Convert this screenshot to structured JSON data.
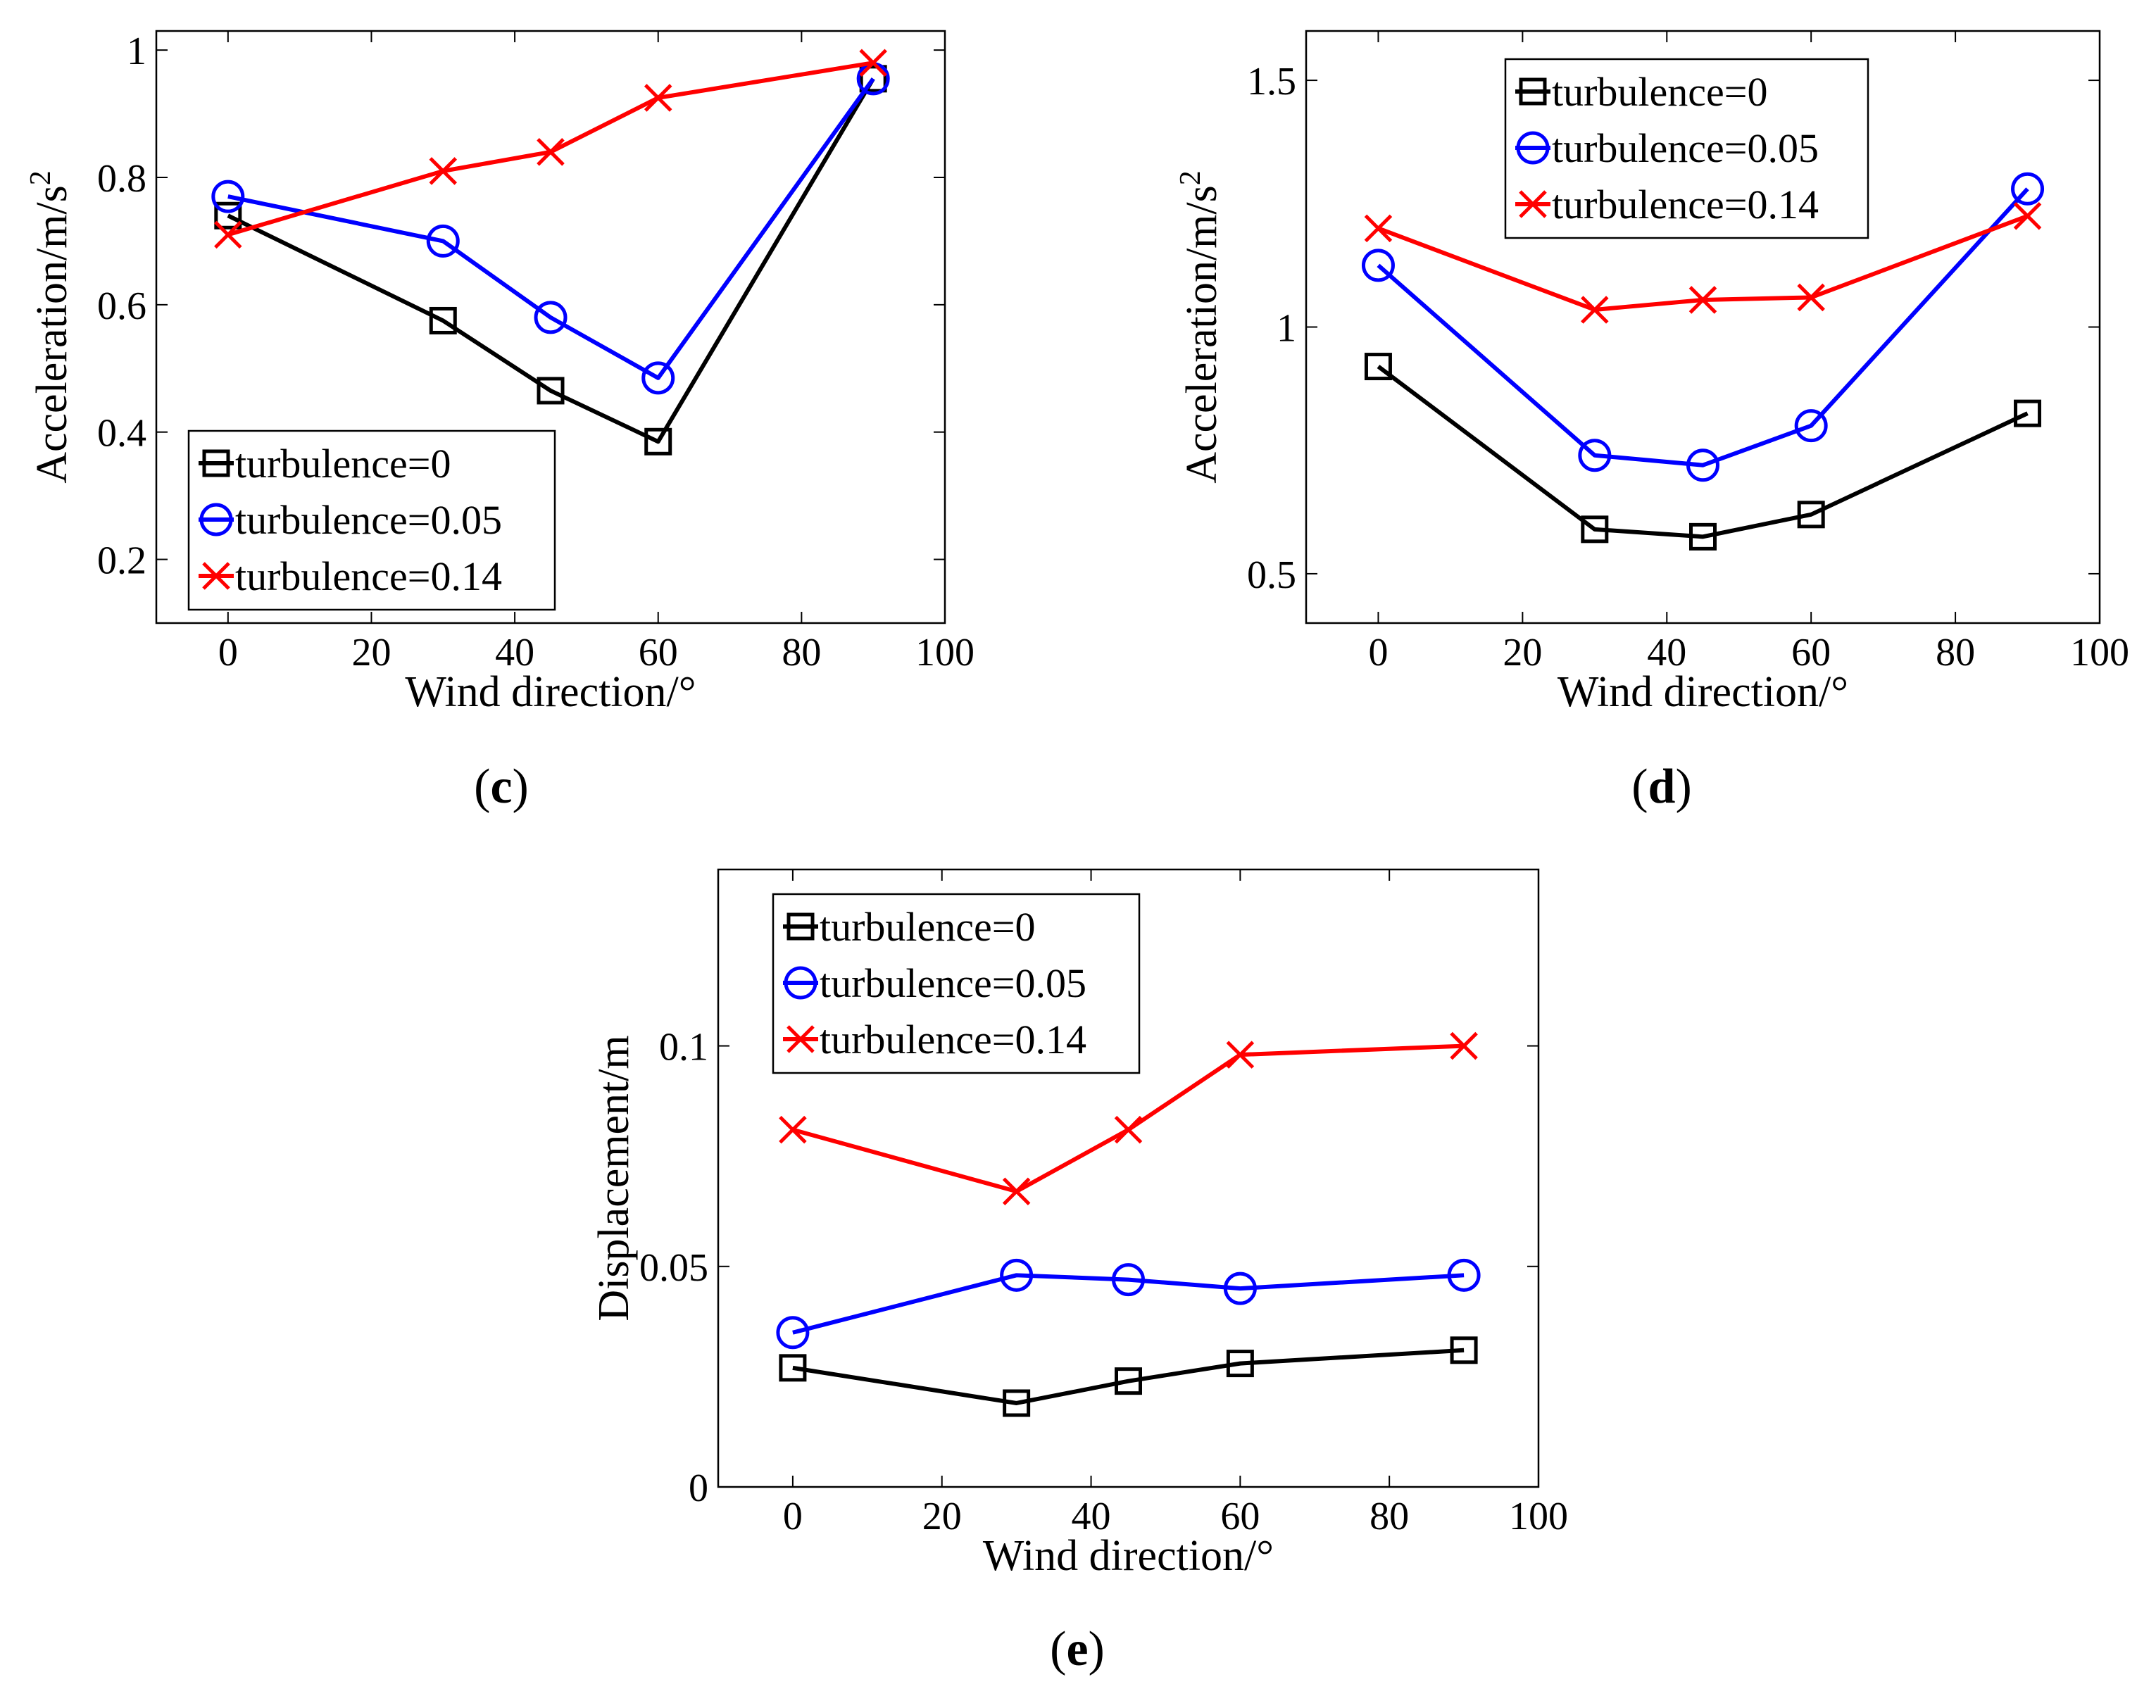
{
  "figure": {
    "panel_labels": [
      "(c)",
      "(d)",
      "(e)"
    ]
  },
  "series_colors": [
    "#000000",
    "#0000ff",
    "#ff0000"
  ],
  "chart_data": [
    {
      "type": "line",
      "panel": "c",
      "label": "(c)",
      "xlabel": "Wind direction/°",
      "ylabel": "Acceleration/m/s",
      "ylabel_sup": "2",
      "xlim": [
        -10,
        100
      ],
      "ylim": [
        0.1,
        1.03
      ],
      "xticks": [
        0,
        20,
        40,
        60,
        80,
        100
      ],
      "xtick_labels": [
        "0",
        "20",
        "40",
        "60",
        "80",
        "100"
      ],
      "yticks": [
        0.2,
        0.4,
        0.6,
        0.8,
        1
      ],
      "ytick_labels": [
        "0.2",
        "0.4",
        "0.6",
        "0.8",
        "1"
      ],
      "legend_position": "bottom-left",
      "x": [
        0,
        30,
        45,
        60,
        90
      ],
      "series": [
        {
          "name": "turbulence=0",
          "marker": "square",
          "color": "#000000",
          "values": [
            0.74,
            0.575,
            0.465,
            0.385,
            0.955
          ]
        },
        {
          "name": "turbulence=0.05",
          "marker": "circle",
          "color": "#0000ff",
          "values": [
            0.77,
            0.7,
            0.58,
            0.485,
            0.955
          ]
        },
        {
          "name": "turbulence=0.14",
          "marker": "x",
          "color": "#ff0000",
          "values": [
            0.71,
            0.81,
            0.84,
            0.925,
            0.98
          ]
        }
      ]
    },
    {
      "type": "line",
      "panel": "d",
      "label": "(d)",
      "xlabel": "Wind direction/°",
      "ylabel": "Acceleration/m/s",
      "ylabel_sup": "2",
      "xlim": [
        -10,
        100
      ],
      "ylim": [
        0.4,
        1.6
      ],
      "xticks": [
        0,
        20,
        40,
        60,
        80,
        100
      ],
      "xtick_labels": [
        "0",
        "20",
        "40",
        "60",
        "80",
        "100"
      ],
      "yticks": [
        0.5,
        1,
        1.5
      ],
      "ytick_labels": [
        "0.5",
        "1",
        "1.5"
      ],
      "legend_position": "top-left",
      "x": [
        0,
        30,
        45,
        60,
        90
      ],
      "series": [
        {
          "name": "turbulence=0",
          "marker": "square",
          "color": "#000000",
          "values": [
            0.92,
            0.59,
            0.575,
            0.62,
            0.825
          ]
        },
        {
          "name": "turbulence=0.05",
          "marker": "circle",
          "color": "#0000ff",
          "values": [
            1.125,
            0.74,
            0.72,
            0.8,
            1.28
          ]
        },
        {
          "name": "turbulence=0.14",
          "marker": "x",
          "color": "#ff0000",
          "values": [
            1.2,
            1.035,
            1.055,
            1.06,
            1.225
          ]
        }
      ]
    },
    {
      "type": "line",
      "panel": "e",
      "label": "(e)",
      "xlabel": "Wind direction/°",
      "ylabel": "Displacement/m",
      "ylabel_sup": "",
      "xlim": [
        -10,
        100
      ],
      "ylim": [
        0,
        0.14
      ],
      "xticks": [
        0,
        20,
        40,
        60,
        80,
        100
      ],
      "xtick_labels": [
        "0",
        "20",
        "40",
        "60",
        "80",
        "100"
      ],
      "yticks": [
        0,
        0.05,
        0.1
      ],
      "ytick_labels": [
        "0",
        "0.05",
        "0.1"
      ],
      "legend_position": "top-left",
      "x": [
        0,
        30,
        45,
        60,
        90
      ],
      "series": [
        {
          "name": "turbulence=0",
          "marker": "square",
          "color": "#000000",
          "values": [
            0.027,
            0.019,
            0.024,
            0.028,
            0.031
          ]
        },
        {
          "name": "turbulence=0.05",
          "marker": "circle",
          "color": "#0000ff",
          "values": [
            0.035,
            0.048,
            0.047,
            0.045,
            0.048
          ]
        },
        {
          "name": "turbulence=0.14",
          "marker": "x",
          "color": "#ff0000",
          "values": [
            0.081,
            0.067,
            0.081,
            0.098,
            0.1
          ]
        }
      ]
    }
  ]
}
